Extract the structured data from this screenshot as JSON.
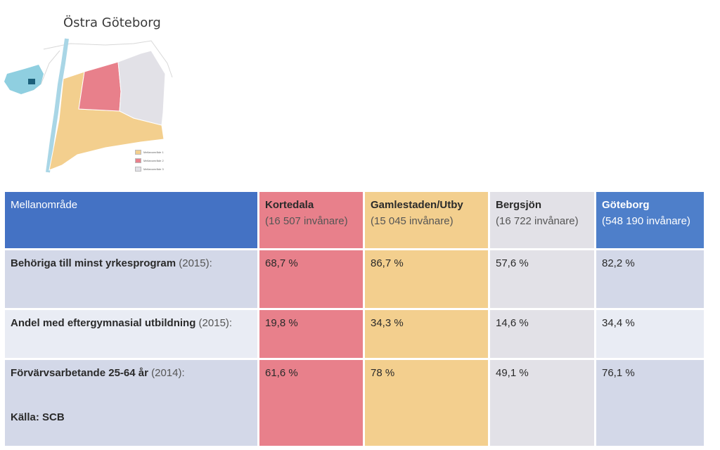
{
  "map": {
    "title": "Östra Göteborg",
    "legend": [
      {
        "label": "Mellanområde 1",
        "color": "#f3cf8e"
      },
      {
        "label": "Mellanområde 2",
        "color": "#e8808b"
      },
      {
        "label": "Mellanområde 3",
        "color": "#e2e1e7"
      }
    ]
  },
  "table": {
    "header": {
      "label": "Mellanområde",
      "columns": [
        {
          "name": "Kortedala",
          "pop": "(16 507 invånare)",
          "color": "#e8808b"
        },
        {
          "name": "Gamlestaden/Utby",
          "pop": "(15 045 invånare)",
          "color": "#f3cf8e"
        },
        {
          "name": "Bergsjön",
          "pop": "(16 722 invånare)",
          "color": "#e2e1e7"
        },
        {
          "name": "Göteborg",
          "pop": "(548 190 invånare)",
          "color": "#4e7fca"
        }
      ]
    },
    "rows": [
      {
        "label": "Behöriga till minst yrkesprogram",
        "year": "(2015):",
        "values": [
          "68,7 %",
          "86,7 %",
          "57,6 %",
          "82,2 %"
        ]
      },
      {
        "label": "Andel med eftergymnasial utbildning",
        "year": "(2015):",
        "values": [
          "19,8 %",
          "34,3 %",
          "14,6 %",
          "34,4 %"
        ]
      },
      {
        "label": "Förvärvsarbetande 25-64 år",
        "year": "(2014):",
        "values": [
          "61,6 %",
          "78 %",
          "49,1 %",
          "76,1 %"
        ]
      }
    ],
    "source": "Källa: SCB"
  }
}
